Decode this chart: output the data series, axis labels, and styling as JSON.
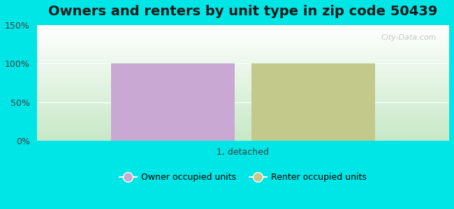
{
  "title": "Owners and renters by unit type in zip code 50439",
  "categories": [
    "1, detached"
  ],
  "owner_values": [
    100
  ],
  "renter_values": [
    100
  ],
  "owner_color": "#c9a8d4",
  "renter_color": "#c2c98a",
  "ylim": [
    0,
    150
  ],
  "yticks": [
    0,
    50,
    100,
    150
  ],
  "ytick_labels": [
    "0%",
    "50%",
    "100%",
    "150%"
  ],
  "bg_color": "#00e5e5",
  "legend_owner": "Owner occupied units",
  "legend_renter": "Renter occupied units",
  "watermark": "City-Data.com",
  "bar_width": 0.3,
  "title_fontsize": 14,
  "axis_label_fontsize": 9
}
